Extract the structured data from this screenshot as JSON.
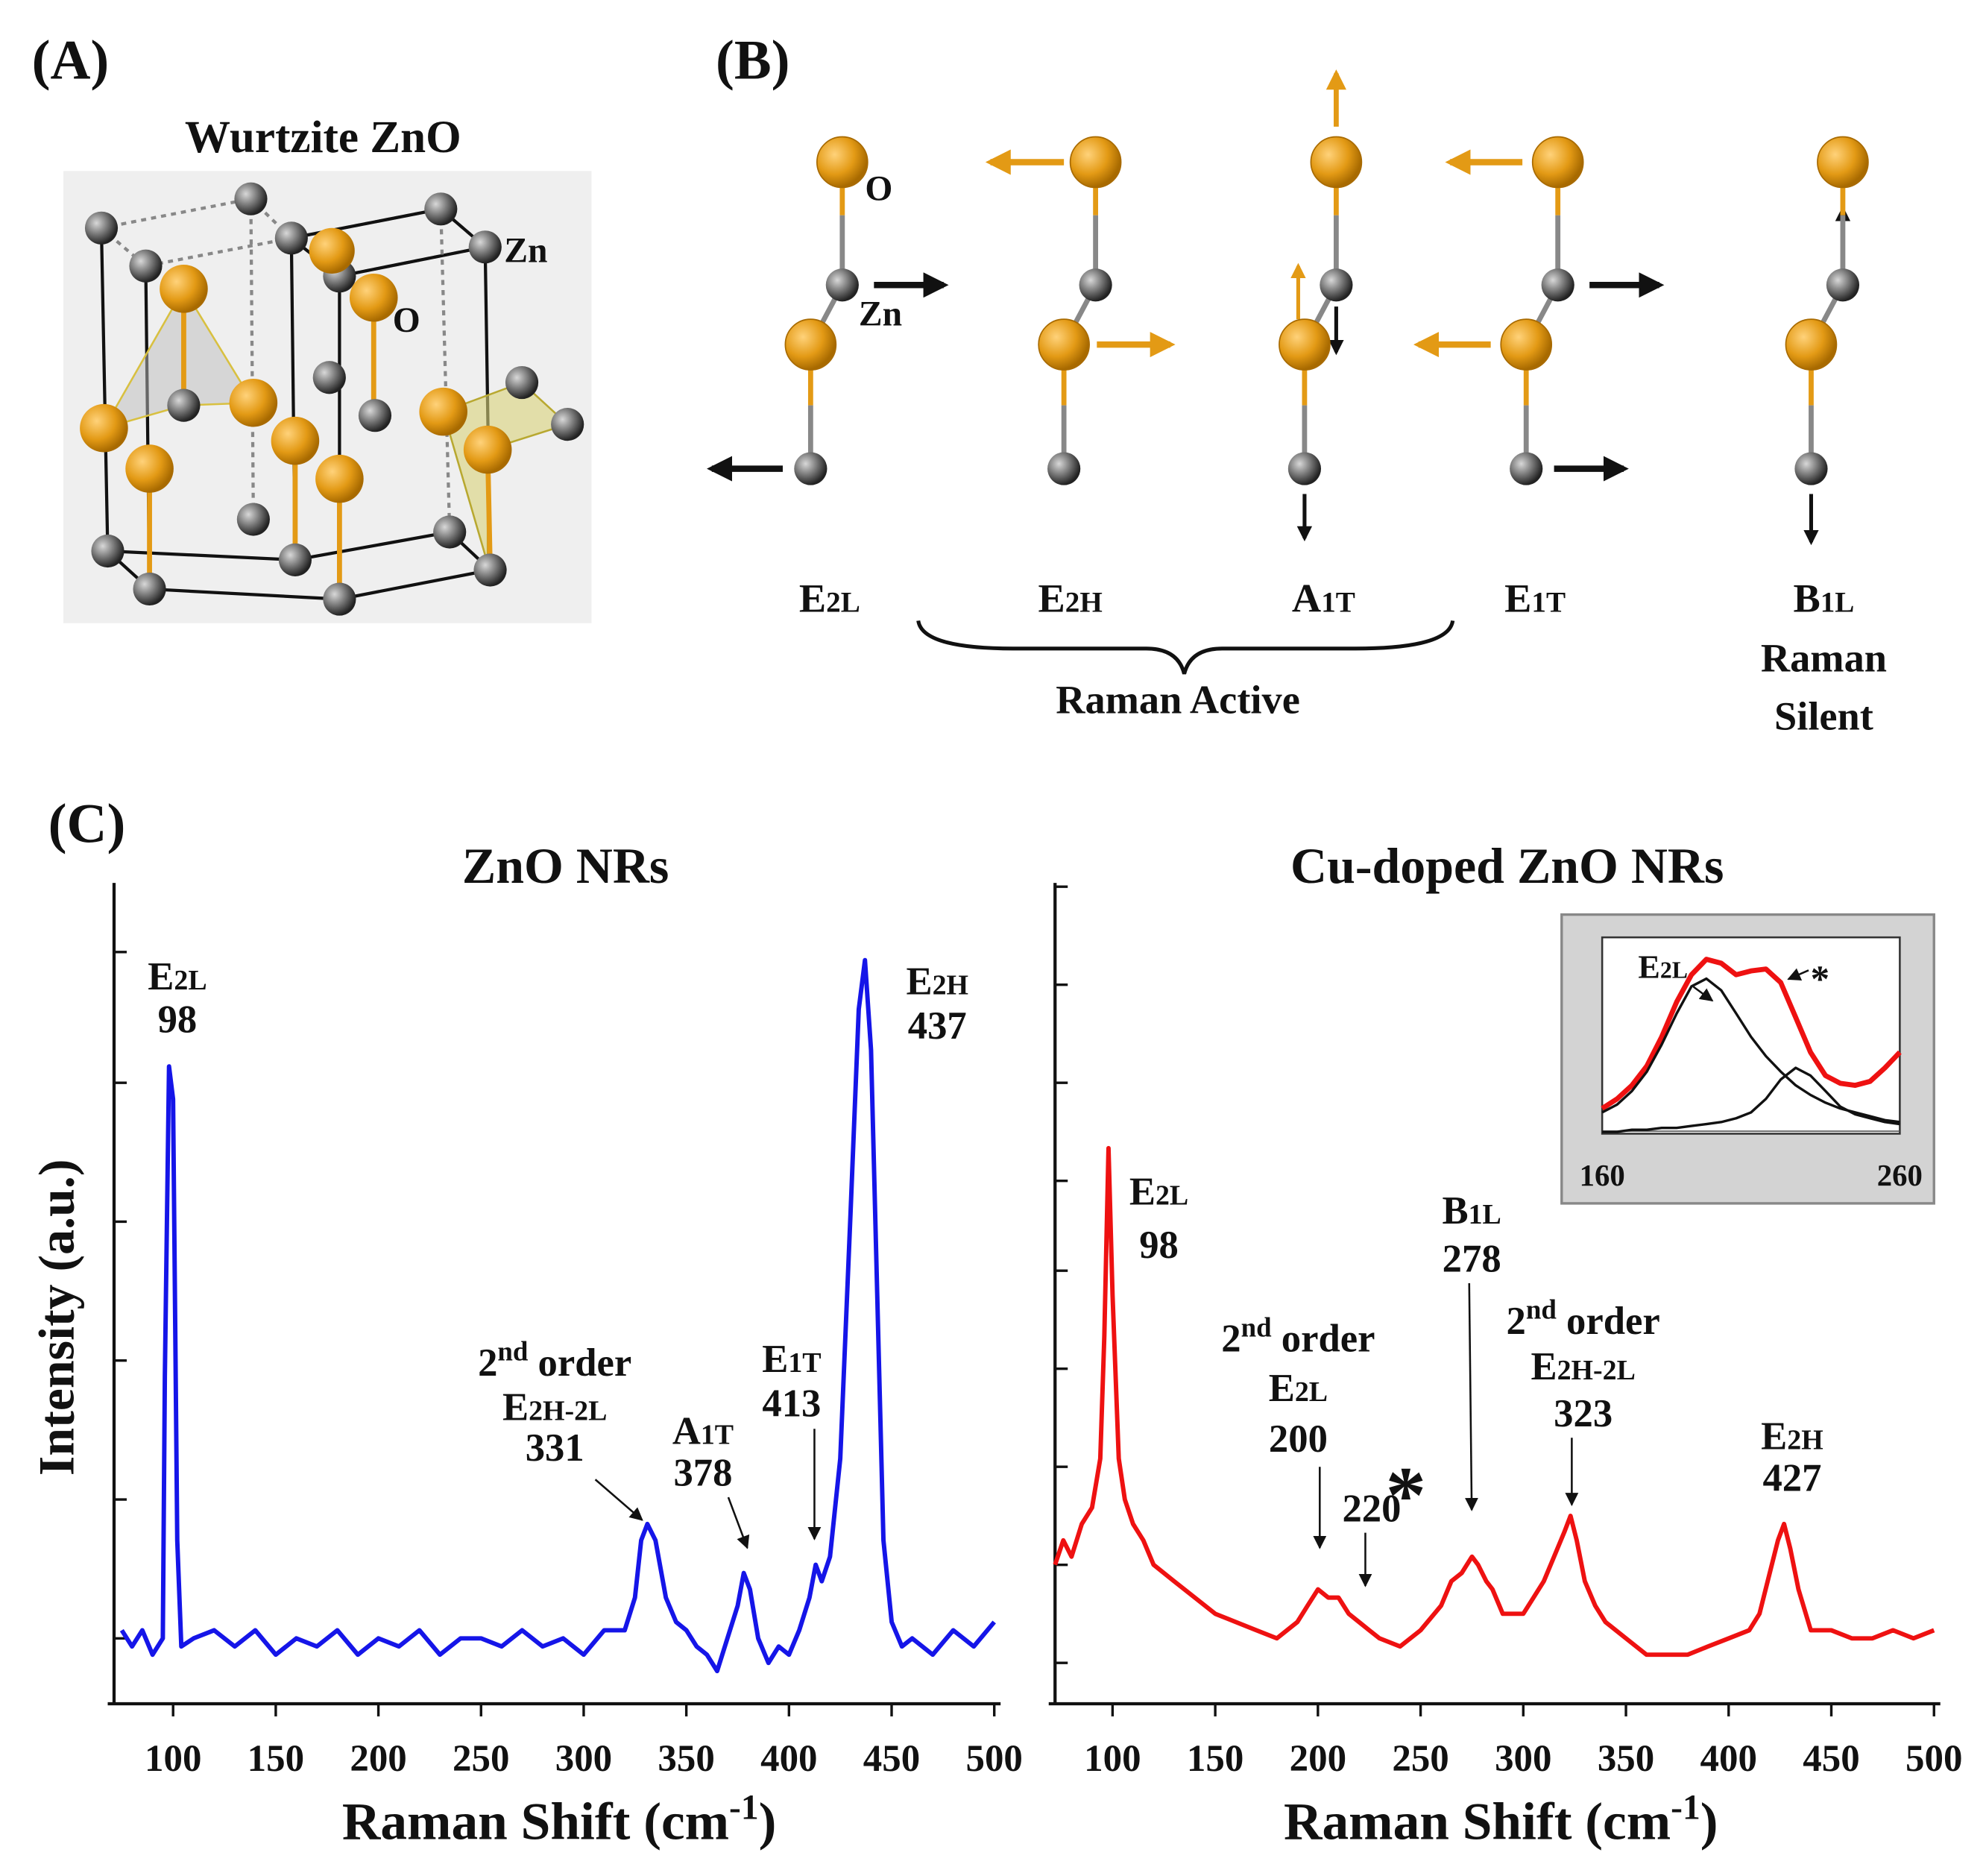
{
  "panel_a": {
    "label": "(A)",
    "title": "Wurtzite ZnO",
    "atom_labels": [
      "Zn",
      "O"
    ]
  },
  "panel_b": {
    "label": "(B)",
    "atom_labels": [
      "O",
      "Zn"
    ],
    "modes": [
      {
        "letter": "E",
        "sub": "2L"
      },
      {
        "letter": "E",
        "sub": "2H"
      },
      {
        "letter": "A",
        "sub": "1T"
      },
      {
        "letter": "E",
        "sub": "1T"
      },
      {
        "letter": "B",
        "sub": "1L"
      }
    ],
    "raman_active": "Raman  Active",
    "raman_silent": [
      "Raman",
      "Silent"
    ]
  },
  "panel_c": {
    "label": "(C)"
  },
  "chart_data": [
    {
      "type": "line",
      "title": "ZnO NRs",
      "y_label": "Intensity (a.u.)",
      "x_label": {
        "text": "Raman Shift  (cm",
        "sup": "-1",
        "end": ")"
      },
      "xlim": [
        70,
        500
      ],
      "xticks": [
        100,
        150,
        200,
        250,
        300,
        350,
        400,
        450,
        500
      ],
      "ylim": [
        0,
        100
      ],
      "yticks": [
        8,
        25,
        42,
        59,
        76,
        92
      ],
      "x": [
        75,
        80,
        85,
        90,
        95,
        96,
        98,
        100,
        102,
        104,
        110,
        120,
        130,
        140,
        150,
        160,
        170,
        180,
        190,
        200,
        210,
        220,
        230,
        240,
        250,
        260,
        270,
        280,
        290,
        300,
        310,
        320,
        325,
        328,
        331,
        335,
        340,
        345,
        350,
        355,
        360,
        365,
        370,
        375,
        378,
        381,
        385,
        390,
        395,
        400,
        405,
        410,
        413,
        416,
        420,
        425,
        430,
        434,
        437,
        440,
        443,
        446,
        450,
        455,
        460,
        470,
        480,
        490,
        500
      ],
      "series": [
        {
          "color": "#1515e8",
          "values": [
            9,
            7,
            9,
            6,
            8,
            40,
            78,
            74,
            20,
            7,
            8,
            9,
            7,
            9,
            6,
            8,
            7,
            9,
            6,
            8,
            7,
            9,
            6,
            8,
            8,
            7,
            9,
            7,
            8,
            6,
            9,
            9,
            13,
            20,
            22,
            20,
            13,
            10,
            9,
            7,
            6,
            4,
            8,
            12,
            16,
            14,
            8,
            5,
            7,
            6,
            9,
            13,
            17,
            15,
            18,
            30,
            60,
            85,
            91,
            80,
            50,
            20,
            10,
            7,
            8,
            6,
            9,
            7,
            10
          ]
        }
      ],
      "annotations": [
        {
          "mode": {
            "letter": "E",
            "sub": "2L"
          },
          "value": 98
        },
        {
          "mode": {
            "letter": "E",
            "sub": "2H"
          },
          "value": 437
        },
        {
          "prefix": "2",
          "sup": "nd",
          "word": "order",
          "mode": {
            "letter": "E",
            "sub": "2H-2L"
          },
          "value": 331
        },
        {
          "mode": {
            "letter": "A",
            "sub": "1T"
          },
          "value": 378
        },
        {
          "mode": {
            "letter": "E",
            "sub": "1T"
          },
          "value": 413
        }
      ]
    },
    {
      "type": "line",
      "title": "Cu-doped ZnO NRs",
      "x_label": {
        "text": "Raman Shift  (cm",
        "sup": "-1",
        "end": ")"
      },
      "xlim": [
        72,
        500
      ],
      "xticks": [
        100,
        150,
        200,
        250,
        300,
        350,
        400,
        450,
        500
      ],
      "ylim": [
        0,
        100
      ],
      "yticks": [
        5,
        17,
        29,
        41,
        53,
        64,
        76,
        88,
        100
      ],
      "x": [
        72,
        76,
        80,
        85,
        90,
        94,
        96,
        98,
        100,
        103,
        106,
        110,
        115,
        120,
        130,
        140,
        150,
        160,
        170,
        180,
        190,
        195,
        200,
        205,
        210,
        215,
        220,
        225,
        230,
        240,
        250,
        260,
        265,
        270,
        275,
        278,
        282,
        285,
        290,
        300,
        305,
        310,
        315,
        320,
        323,
        326,
        330,
        335,
        340,
        350,
        360,
        370,
        380,
        390,
        400,
        410,
        415,
        420,
        424,
        427,
        430,
        434,
        440,
        450,
        460,
        470,
        480,
        490,
        500
      ],
      "series": [
        {
          "color": "#ee1111",
          "values": [
            17,
            20,
            18,
            22,
            24,
            30,
            45,
            68,
            50,
            30,
            25,
            22,
            20,
            17,
            15,
            13,
            11,
            10,
            9,
            8,
            10,
            12,
            14,
            13,
            13,
            11,
            10,
            9,
            8,
            7,
            9,
            12,
            15,
            16,
            18,
            17,
            15,
            14,
            11,
            11,
            13,
            15,
            18,
            21,
            23,
            20,
            15,
            12,
            10,
            8,
            6,
            6,
            6,
            7,
            8,
            9,
            11,
            16,
            20,
            22,
            19,
            14,
            9,
            9,
            8,
            8,
            9,
            8,
            9
          ]
        }
      ],
      "annotations": [
        {
          "mode": {
            "letter": "E",
            "sub": "2L"
          },
          "value": 98
        },
        {
          "prefix": "2",
          "sup": "nd",
          "word": "order",
          "mode": {
            "letter": "E",
            "sub": "2L"
          },
          "value": 200
        },
        {
          "value": 220
        },
        {
          "text": "*"
        },
        {
          "mode": {
            "letter": "B",
            "sub": "1L"
          },
          "value": 278
        },
        {
          "prefix": "2",
          "sup": "nd",
          "word": "order",
          "mode": {
            "letter": "E",
            "sub": "2H-2L"
          },
          "value": 323
        },
        {
          "mode": {
            "letter": "E",
            "sub": "2H"
          },
          "value": 427
        }
      ]
    },
    {
      "type": "line",
      "xlim": [
        160,
        260
      ],
      "xticks": [
        160,
        260
      ],
      "ylim": [
        0,
        100
      ],
      "x": [
        160,
        165,
        170,
        175,
        180,
        185,
        190,
        195,
        200,
        205,
        210,
        215,
        220,
        225,
        230,
        235,
        240,
        245,
        250,
        255,
        260
      ],
      "series": [
        {
          "color": "#ee1111",
          "values": [
            13,
            18,
            25,
            35,
            50,
            68,
            82,
            90,
            88,
            82,
            84,
            85,
            78,
            60,
            42,
            30,
            26,
            25,
            27,
            34,
            42
          ]
        },
        {
          "color": "#111111",
          "values": [
            11,
            15,
            22,
            32,
            46,
            62,
            76,
            80,
            74,
            62,
            50,
            40,
            32,
            25,
            20,
            16,
            13,
            11,
            9,
            7,
            6
          ]
        },
        {
          "color": "#111111",
          "values": [
            1,
            1,
            2,
            2,
            3,
            3,
            4,
            5,
            6,
            8,
            11,
            18,
            28,
            34,
            30,
            22,
            14,
            10,
            8,
            6,
            5
          ]
        }
      ],
      "annotations": [
        {
          "mode": {
            "letter": "E",
            "sub": "2L"
          }
        },
        {
          "text": "*"
        }
      ]
    }
  ]
}
